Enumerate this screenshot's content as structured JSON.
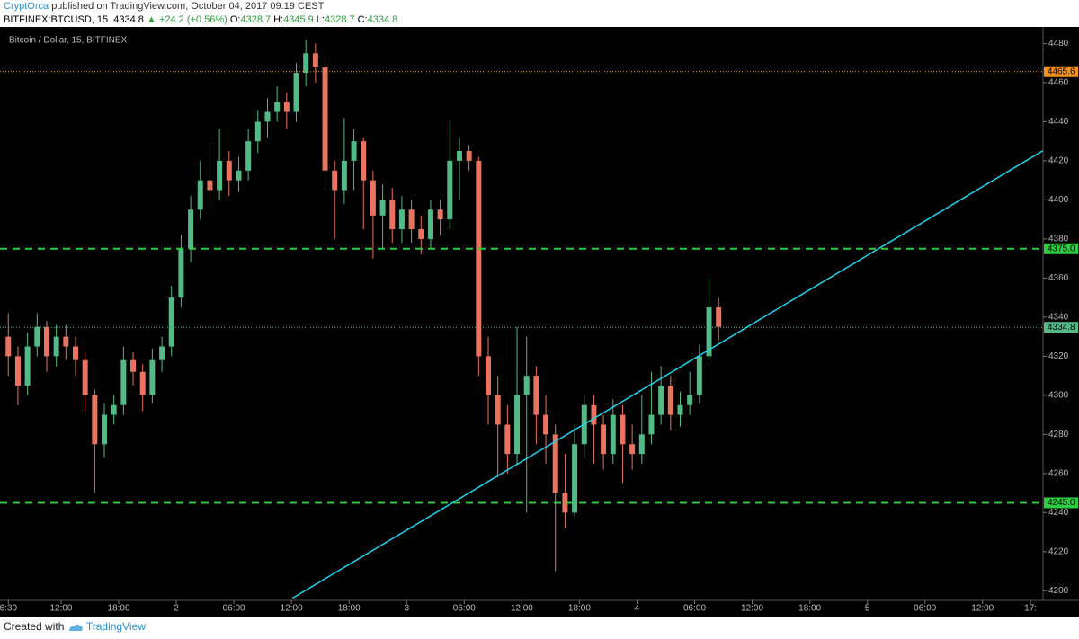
{
  "header": {
    "author": "CryptOrca",
    "published": "published on TradingView.com, October 04, 2017 09:19 CEST",
    "symbol": "BITFINEX:BTCUSD, 15",
    "last": "4334.8",
    "arrow": "▲",
    "change": "+24.2 (+0.56%)",
    "ohlc": [
      {
        "label": "O:",
        "value": "4328.7"
      },
      {
        "label": "H:",
        "value": "4345.9"
      },
      {
        "label": "L:",
        "value": "4328.7"
      },
      {
        "label": "C:",
        "value": "4334.8"
      }
    ]
  },
  "footer": {
    "created": "Created with",
    "brand": "TradingView"
  },
  "chart_data": {
    "type": "candlestick",
    "title": "Bitcoin / Dollar, 15, BITFINEX",
    "up_color": "#53b987",
    "down_color": "#e8735f",
    "x": [
      6.5,
      7.5,
      8.5,
      9.5,
      10.5,
      11.5,
      12.5,
      13.5,
      14.5,
      15.5,
      16.5,
      17.5,
      18.5,
      19.5,
      20.5,
      21.5,
      22.5,
      23.5,
      24.5,
      25.5,
      26.5,
      27.5,
      28.5,
      29.5,
      30.5,
      31.5,
      32.5,
      33.5,
      34.5,
      35.5,
      36.5,
      37.5,
      38.5,
      39.5,
      40.5,
      41.5,
      42.5,
      43.5,
      44.5,
      45.5,
      46.5,
      47.5,
      48.5,
      49.5,
      50.5,
      51.5,
      52.5,
      53.5,
      54.5,
      55.5,
      56.5,
      57.5,
      58.5,
      59.5,
      60.5,
      61.5,
      62.5,
      63.5,
      64.5,
      65.5,
      66.5,
      67.5,
      68.5,
      69.5,
      70.5,
      71.5,
      72.5,
      73.5,
      74.5,
      75.5,
      76.5,
      77.5,
      78.5,
      79.5,
      80.5
    ],
    "open": [
      4330,
      4320,
      4305,
      4325,
      4335,
      4320,
      4330,
      4325,
      4318,
      4300,
      4275,
      4290,
      4295,
      4318,
      4312,
      4300,
      4318,
      4325,
      4350,
      4375,
      4395,
      4410,
      4405,
      4420,
      4410,
      4415,
      4430,
      4440,
      4445,
      4450,
      4445,
      4465,
      4475,
      4468,
      4415,
      4405,
      4420,
      4430,
      4410,
      4392,
      4400,
      4385,
      4395,
      4385,
      4380,
      4395,
      4390,
      4420,
      4425,
      4420,
      4320,
      4300,
      4285,
      4270,
      4300,
      4310,
      4290,
      4280,
      4250,
      4240,
      4275,
      4295,
      4285,
      4270,
      4290,
      4275,
      4270,
      4280,
      4290,
      4305,
      4290,
      4295,
      4300,
      4320,
      4345
    ],
    "high": [
      4342,
      4325,
      4332,
      4342,
      4338,
      4336,
      4336,
      4330,
      4322,
      4303,
      4296,
      4300,
      4325,
      4322,
      4316,
      4324,
      4330,
      4356,
      4382,
      4402,
      4420,
      4430,
      4436,
      4425,
      4422,
      4436,
      4446,
      4452,
      4458,
      4455,
      4470,
      4482,
      4480,
      4470,
      4420,
      4442,
      4436,
      4432,
      4415,
      4408,
      4406,
      4402,
      4400,
      4392,
      4400,
      4400,
      4440,
      4432,
      4428,
      4422,
      4330,
      4310,
      4295,
      4335,
      4330,
      4315,
      4300,
      4285,
      4270,
      4285,
      4300,
      4300,
      4290,
      4298,
      4295,
      4285,
      4300,
      4312,
      4315,
      4310,
      4302,
      4312,
      4326,
      4360,
      4350
    ],
    "low": [
      4310,
      4295,
      4300,
      4320,
      4312,
      4315,
      4318,
      4310,
      4292,
      4250,
      4268,
      4285,
      4290,
      4305,
      4292,
      4296,
      4312,
      4320,
      4345,
      4368,
      4390,
      4398,
      4400,
      4402,
      4404,
      4410,
      4424,
      4432,
      4440,
      4436,
      4440,
      4458,
      4460,
      4405,
      4380,
      4398,
      4405,
      4385,
      4370,
      4375,
      4378,
      4378,
      4378,
      4372,
      4375,
      4382,
      4385,
      4400,
      4415,
      4310,
      4285,
      4258,
      4260,
      4265,
      4240,
      4275,
      4265,
      4210,
      4232,
      4238,
      4268,
      4265,
      4262,
      4265,
      4255,
      4262,
      4265,
      4275,
      4285,
      4282,
      4284,
      4290,
      4296,
      4318,
      4328
    ],
    "close": [
      4320,
      4305,
      4325,
      4335,
      4320,
      4330,
      4325,
      4318,
      4300,
      4275,
      4290,
      4295,
      4318,
      4312,
      4300,
      4318,
      4325,
      4350,
      4375,
      4395,
      4410,
      4405,
      4420,
      4410,
      4415,
      4430,
      4440,
      4445,
      4450,
      4445,
      4465,
      4475,
      4468,
      4415,
      4405,
      4420,
      4430,
      4410,
      4392,
      4400,
      4385,
      4395,
      4385,
      4380,
      4395,
      4390,
      4420,
      4425,
      4420,
      4320,
      4300,
      4285,
      4270,
      4300,
      4310,
      4290,
      4280,
      4250,
      4240,
      4275,
      4295,
      4285,
      4270,
      4290,
      4275,
      4270,
      4280,
      4290,
      4305,
      4290,
      4295,
      4300,
      4320,
      4345,
      4335
    ],
    "xlim": [
      6.1,
      114.3
    ],
    "ylim": [
      4196.2,
      4484.8
    ],
    "xticks": [
      {
        "value": 6.5,
        "label": "6:30"
      },
      {
        "value": 12,
        "label": "12:00"
      },
      {
        "value": 18,
        "label": "18:00"
      },
      {
        "value": 24,
        "label": "2"
      },
      {
        "value": 30,
        "label": "06:00"
      },
      {
        "value": 36,
        "label": "12:00"
      },
      {
        "value": 42,
        "label": "18:00"
      },
      {
        "value": 48,
        "label": "3"
      },
      {
        "value": 54,
        "label": "06:00"
      },
      {
        "value": 60,
        "label": "12:00"
      },
      {
        "value": 66,
        "label": "18:00"
      },
      {
        "value": 72,
        "label": "4"
      },
      {
        "value": 78,
        "label": "06:00"
      },
      {
        "value": 84,
        "label": "12:00"
      },
      {
        "value": 90,
        "label": "18:00"
      },
      {
        "value": 96,
        "label": "5"
      },
      {
        "value": 102,
        "label": "06:00"
      },
      {
        "value": 108,
        "label": "12:00"
      },
      {
        "value": 113,
        "label": "17:"
      }
    ],
    "yticks": [
      4200,
      4220,
      4240,
      4260,
      4280,
      4300,
      4320,
      4340,
      4360,
      4380,
      4400,
      4420,
      4440,
      4460,
      4480
    ],
    "hlines": [
      {
        "value": {
          "value": 4465.6,
          "label": "4465.6"
        },
        "color": "#f7931a",
        "style": "dotted"
      },
      {
        "value": {
          "value": 4375,
          "label": "4375.0"
        },
        "color": "#2ecc40",
        "style": "dashed"
      },
      {
        "value": {
          "value": 4245,
          "label": "4245.0"
        },
        "color": "#2ecc40",
        "style": "dashed"
      },
      {
        "value": {
          "value": 4334.8,
          "label": "4334.8"
        },
        "color": "#53b987",
        "style": "dotted"
      }
    ],
    "trendlines": [
      {
        "x": [
          36.1,
          114.3
        ],
        "y": [
          4196.2,
          4425.2
        ],
        "color": "#22d3ee"
      }
    ]
  }
}
